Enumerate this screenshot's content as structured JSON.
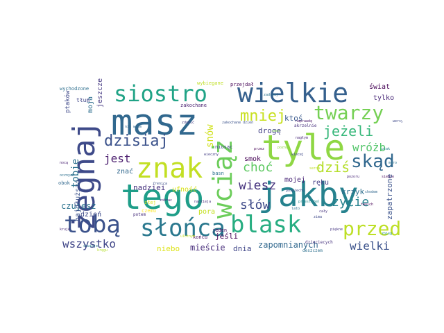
{
  "words": [
    {
      "text": "masz",
      "color": "#31688e"
    },
    {
      "text": "tyle",
      "color": "#8fd744"
    },
    {
      "text": "tego",
      "color": "#1f9e89"
    },
    {
      "text": "jakby",
      "color": "#26828e"
    },
    {
      "text": "żegnaj",
      "color": "#3e4a89"
    },
    {
      "text": "wciąż",
      "color": "#6ccd5a"
    },
    {
      "text": "znak",
      "color": "#c2df23"
    },
    {
      "text": "wielkie",
      "color": "#35608d"
    },
    {
      "text": "siostro",
      "color": "#20a386"
    },
    {
      "text": "tobą",
      "color": "#3b528b"
    },
    {
      "text": "słońca",
      "color": "#2a788e"
    },
    {
      "text": "blask",
      "color": "#27ad81"
    },
    {
      "text": "twarzy",
      "color": "#75d054"
    },
    {
      "text": "przed",
      "color": "#bddf26"
    },
    {
      "text": "dzisiaj",
      "color": "#3b528b"
    },
    {
      "text": "skąd",
      "color": "#31688e"
    },
    {
      "text": "mniej",
      "color": "#c8e020"
    },
    {
      "text": "jeżeli",
      "color": "#35b779"
    },
    {
      "text": "dziś",
      "color": "#b5de2b"
    },
    {
      "text": "wróżb",
      "color": "#52c569"
    },
    {
      "text": "jest",
      "color": "#481a6c"
    },
    {
      "text": "choć",
      "color": "#5ec962"
    },
    {
      "text": "wiesz",
      "color": "#46337e"
    },
    {
      "text": "słów",
      "color": "#3e4a89"
    },
    {
      "text": "życie",
      "color": "#26828e"
    },
    {
      "text": "wszystko",
      "color": "#404688"
    },
    {
      "text": "wielki",
      "color": "#3b528b"
    },
    {
      "text": "snów",
      "color": "#d0e11c"
    },
    {
      "text": "tobie",
      "color": "#2c728e"
    },
    {
      "text": "czujesz",
      "color": "#2c728e"
    },
    {
      "text": "zapomnianych",
      "color": "#31688e"
    },
    {
      "text": "nadziei",
      "color": "#46327e"
    },
    {
      "text": "mieście",
      "color": "#472d7b"
    },
    {
      "text": "niebo",
      "color": "#dde318"
    },
    {
      "text": "dnia",
      "color": "#404688"
    },
    {
      "text": "krzyk",
      "color": "#2e6f8e"
    },
    {
      "text": "zapatrzone",
      "color": "#3b528b"
    },
    {
      "text": "drogę",
      "color": "#424086"
    },
    {
      "text": "ktoś",
      "color": "#38588c"
    },
    {
      "text": "smok",
      "color": "#440154"
    },
    {
      "text": "jeśli",
      "color": "#440154"
    },
    {
      "text": "mojej",
      "color": "#482576"
    },
    {
      "text": "pora",
      "color": "#c5e021"
    },
    {
      "text": "znać",
      "color": "#31688e"
    },
    {
      "text": "ufność",
      "color": "#d8e219"
    },
    {
      "text": "świat",
      "color": "#440154"
    },
    {
      "text": "tylko",
      "color": "#482878"
    },
    {
      "text": "ręku",
      "color": "#433e85"
    },
    {
      "text": "dzień",
      "color": "#3e4a89"
    },
    {
      "text": "najdłuższą",
      "color": "#3b528b"
    },
    {
      "text": "moja",
      "color": "#2e6e8e"
    },
    {
      "text": "jeszcze",
      "color": "#453882"
    },
    {
      "text": "ptaków",
      "color": "#3e4989"
    },
    {
      "text": "tłum",
      "color": "#404688"
    },
    {
      "text": "wychodzone",
      "color": "#2e6f8e"
    },
    {
      "text": "zakochane",
      "color": "#481f70"
    },
    {
      "text": "jeden",
      "color": "#46085c"
    },
    {
      "text": "końcu",
      "color": "#471063"
    },
    {
      "text": "potem",
      "color": "#472d7b"
    },
    {
      "text": "niosąc",
      "color": "#414487"
    },
    {
      "text": "basn",
      "color": "#2c738e"
    },
    {
      "text": "czemu",
      "color": "#fde725"
    },
    {
      "text": "obok",
      "color": "#31688e"
    },
    {
      "text": "złej",
      "color": "#dde318"
    },
    {
      "text": "dzieciecych",
      "color": "#46327e"
    },
    {
      "text": "deszczem",
      "color": "#2d708e"
    },
    {
      "text": "akrzelnie",
      "color": "#472f7d"
    },
    {
      "text": "naprawdę",
      "color": "#481467"
    },
    {
      "text": "nagłym",
      "color": "#482677"
    },
    {
      "text": "wybiegane",
      "color": "#c0df25"
    },
    {
      "text": "przejdał",
      "color": "#440154"
    },
    {
      "text": "zdobić",
      "color": "#433d84"
    },
    {
      "text": "ulotnym",
      "color": "#c2df23"
    },
    {
      "text": "zakochane dzień",
      "color": "#3b528b"
    },
    {
      "text": "zadrżej",
      "color": "#2c738e"
    },
    {
      "text": "poznać",
      "color": "#8fd744"
    },
    {
      "text": "pospiechu",
      "color": "#3e4a89"
    },
    {
      "text": "przestrzeń",
      "color": "#238a8d"
    },
    {
      "text": "cały",
      "color": "#46337e"
    },
    {
      "text": "piękne",
      "color": "#453581"
    },
    {
      "text": "twoich",
      "color": "#440154"
    },
    {
      "text": "siebie",
      "color": "#46085c"
    },
    {
      "text": "wersy",
      "color": "#3e4989"
    },
    {
      "text": "nocą",
      "color": "#482173"
    },
    {
      "text": "ocznych",
      "color": "#2d708e"
    },
    {
      "text": "kruje",
      "color": "#482878"
    },
    {
      "text": "chwieje",
      "color": "#2a788e"
    },
    {
      "text": "kręgu",
      "color": "#b5de2b"
    },
    {
      "text": "zobrac",
      "color": "#482878"
    },
    {
      "text": "nadzieja",
      "color": "#46327e"
    },
    {
      "text": "wieczny",
      "color": "#433e85"
    },
    {
      "text": "sens",
      "color": "#7ad151"
    },
    {
      "text": "wiecej",
      "color": "#3e4989"
    },
    {
      "text": "serca",
      "color": "#bddf26"
    },
    {
      "text": "ptak",
      "color": "#26828e"
    },
    {
      "text": "muro",
      "color": "#2c728e"
    },
    {
      "text": "pozoru",
      "color": "#482677"
    },
    {
      "text": "chodem",
      "color": "#31688e"
    },
    {
      "text": "zbieg",
      "color": "#21918c"
    },
    {
      "text": "nie wiem",
      "color": "#31688e"
    },
    {
      "text": "źrenica",
      "color": "#3b528b"
    },
    {
      "text": "przez",
      "color": "#440154"
    },
    {
      "text": "lato",
      "color": "#2e6f8e"
    },
    {
      "text": "zima",
      "color": "#3e4989"
    }
  ]
}
